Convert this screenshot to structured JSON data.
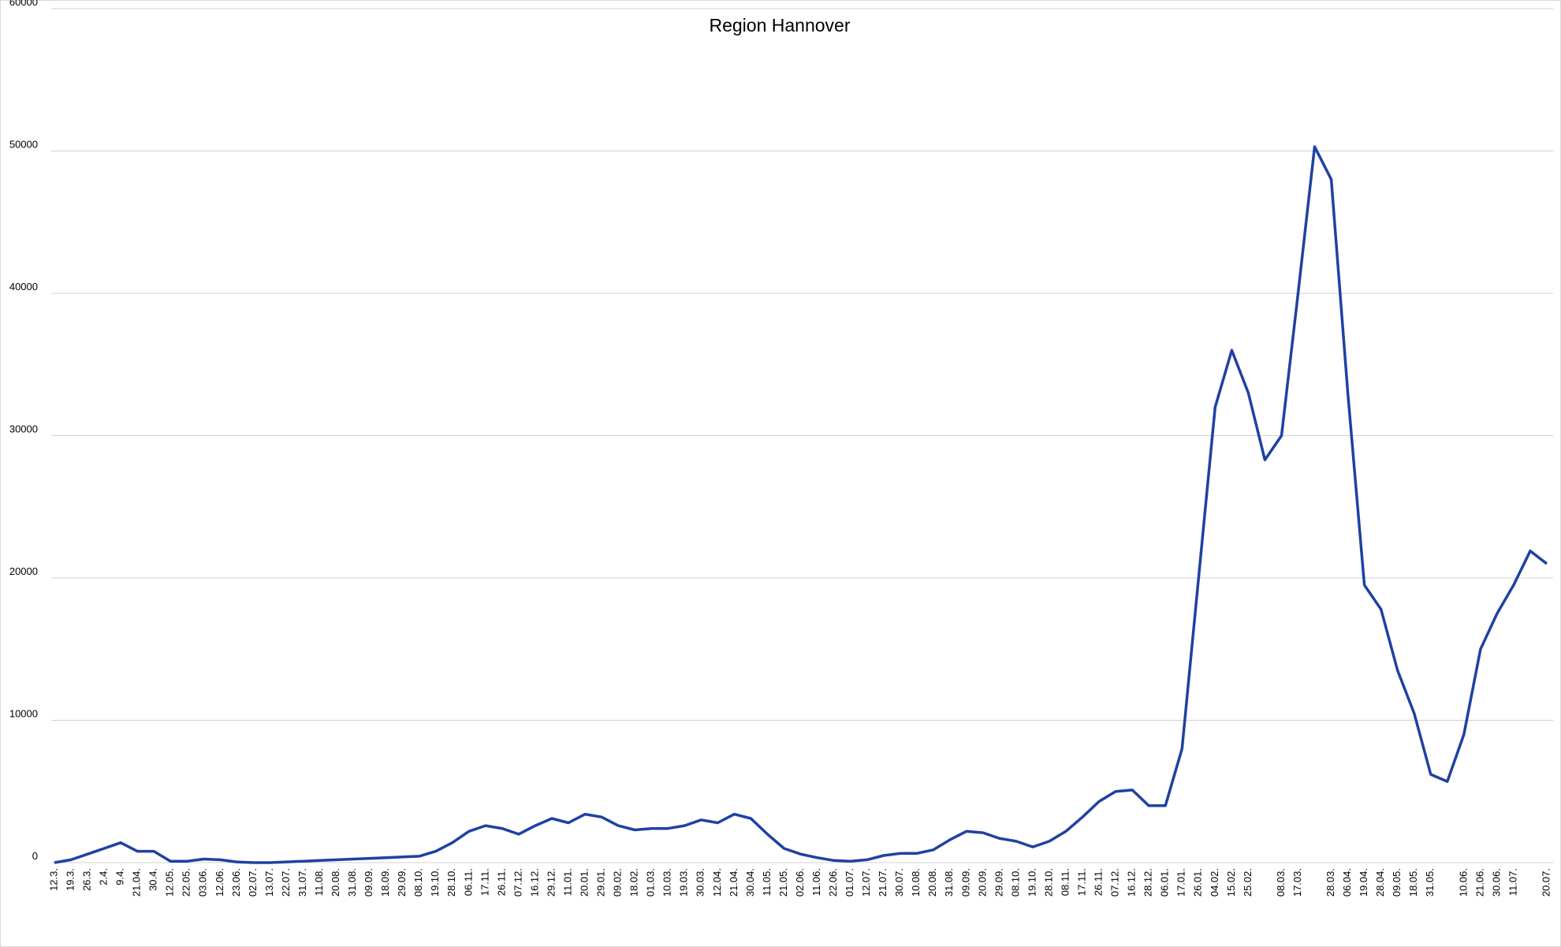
{
  "chart_data": {
    "type": "line",
    "title": "Region Hannover",
    "categories": [
      "12.3.",
      "19.3.",
      "26.3.",
      "2.4.",
      "9.4.",
      "21.04.",
      "30.4.",
      "12.05.",
      "22.05.",
      "03.06.",
      "12.06.",
      "23.06.",
      "02.07.",
      "13.07.",
      "22.07.",
      "31.07.",
      "11.08.",
      "20.08.",
      "31.08.",
      "09.09.",
      "18.09.",
      "29.09.",
      "08.10.",
      "19.10.",
      "28.10.",
      "06.11.",
      "17.11.",
      "26.11.",
      "07.12.",
      "16.12.",
      "29.12.",
      "11.01.",
      "20.01.",
      "29.01.",
      "09.02.",
      "18.02.",
      "01.03.",
      "10.03.",
      "19.03.",
      "30.03.",
      "12.04.",
      "21.04.",
      "30.04.",
      "11.05.",
      "21.05.",
      "02.06.",
      "11.06.",
      "22.06.",
      "01.07.",
      "12.07.",
      "21.07.",
      "30.07.",
      "10.08.",
      "20.08.",
      "31.08.",
      "09.09.",
      "20.09.",
      "29.09.",
      "08.10.",
      "19.10.",
      "28.10.",
      "08.11.",
      "17.11.",
      "26.11.",
      "07.12.",
      "16.12.",
      "28.12.",
      "06.01.",
      "17.01.",
      "26.01.",
      "04.02.",
      "15.02.",
      "25.02.",
      null,
      "08.03.",
      "17.03.",
      null,
      "28.03.",
      "06.04.",
      "19.04.",
      "28.04.",
      "09.05.",
      "18.05.",
      "31.05.",
      null,
      "10.06.",
      "21.06.",
      "30.06.",
      "11.07.",
      null,
      "20.07."
    ],
    "series": [
      {
        "name": "Region Hannover",
        "color": "#1f41a3",
        "values": [
          0,
          200,
          600,
          1000,
          1400,
          800,
          800,
          100,
          100,
          250,
          200,
          50,
          0,
          0,
          50,
          100,
          150,
          200,
          250,
          300,
          350,
          400,
          450,
          800,
          1400,
          2200,
          2600,
          2400,
          2000,
          2600,
          3100,
          2800,
          3400,
          3200,
          2600,
          2300,
          2400,
          2400,
          2600,
          3000,
          2800,
          3400,
          3100,
          2000,
          1000,
          600,
          350,
          150,
          100,
          200,
          500,
          650,
          650,
          900,
          1600,
          2200,
          2100,
          1700,
          1500,
          1100,
          1500,
          2200,
          3200,
          4300,
          5000,
          5100,
          4000,
          4000,
          8000,
          20000,
          32000,
          36000,
          33000,
          28300,
          30000,
          40000,
          50300,
          48000,
          33000,
          19500,
          17800,
          13500,
          10500,
          6200,
          5700,
          9000,
          15000,
          17500,
          19500,
          21900,
          21000
        ]
      }
    ],
    "ylim": [
      0,
      60000
    ],
    "yticks": [
      0,
      10000,
      20000,
      30000,
      40000,
      50000,
      60000
    ],
    "grid": true
  }
}
